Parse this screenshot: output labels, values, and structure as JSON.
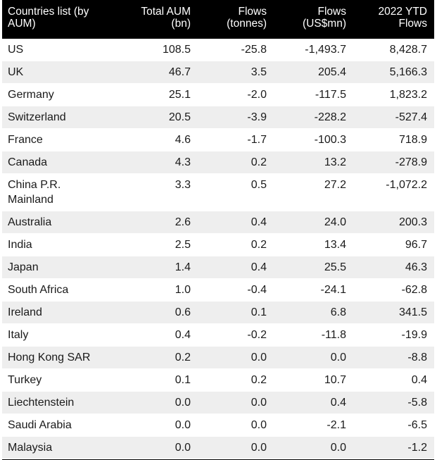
{
  "table": {
    "headers": [
      "Countries list (by AUM)",
      "Total AUM (bn)",
      "Flows (tonnes)",
      "Flows (US$mn)",
      "2022 YTD Flows"
    ],
    "header_lines": [
      [
        "Countries list (by",
        "AUM)"
      ],
      [
        "Total AUM",
        "(bn)"
      ],
      [
        "Flows",
        "(tonnes)"
      ],
      [
        "Flows",
        "(US$mn)"
      ],
      [
        "2022 YTD",
        "Flows"
      ]
    ],
    "rows": [
      [
        "US",
        "108.5",
        "-25.8",
        "-1,493.7",
        "8,428.7"
      ],
      [
        "UK",
        "46.7",
        "3.5",
        "205.4",
        "5,166.3"
      ],
      [
        "Germany",
        "25.1",
        "-2.0",
        "-117.5",
        "1,823.2"
      ],
      [
        "Switzerland",
        "20.5",
        "-3.9",
        "-228.2",
        "-527.4"
      ],
      [
        "France",
        "4.6",
        "-1.7",
        "-100.3",
        "718.9"
      ],
      [
        "Canada",
        "4.3",
        "0.2",
        "13.2",
        "-278.9"
      ],
      [
        "China P.R. Mainland",
        "3.3",
        "0.5",
        "27.2",
        "-1,072.2"
      ],
      [
        "Australia",
        "2.6",
        "0.4",
        "24.0",
        "200.3"
      ],
      [
        "India",
        "2.5",
        "0.2",
        "13.4",
        "96.7"
      ],
      [
        "Japan",
        "1.4",
        "0.4",
        "25.5",
        "46.3"
      ],
      [
        "South Africa",
        "1.0",
        "-0.4",
        "-24.1",
        "-62.8"
      ],
      [
        "Ireland",
        "0.6",
        "0.1",
        "6.8",
        "341.5"
      ],
      [
        "Italy",
        "0.4",
        "-0.2",
        "-11.8",
        "-19.9"
      ],
      [
        "Hong Kong SAR",
        "0.2",
        "0.0",
        "0.0",
        "-8.8"
      ],
      [
        "Turkey",
        "0.1",
        "0.2",
        "10.7",
        "0.4"
      ],
      [
        "Liechtenstein",
        "0.0",
        "0.0",
        "0.4",
        "-5.8"
      ],
      [
        "Saudi Arabia",
        "0.0",
        "0.0",
        "-2.1",
        "-6.5"
      ],
      [
        "Malaysia",
        "0.0",
        "0.0",
        "0.0",
        "-1.2"
      ]
    ],
    "country_lines": {
      "6": [
        "China P.R.",
        "Mainland"
      ]
    }
  }
}
